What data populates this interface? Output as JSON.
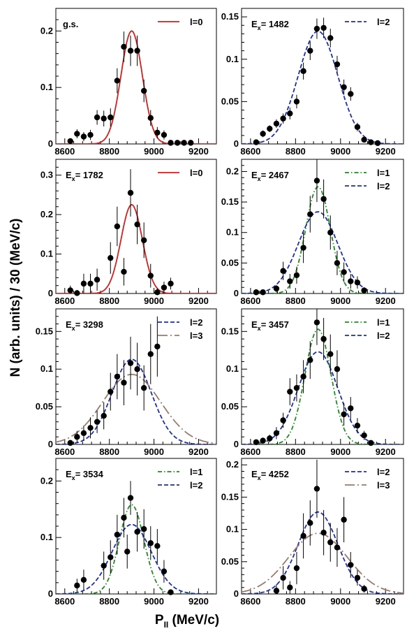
{
  "figure": {
    "ylabel": "N (arb. units) / 30 (MeV/c)",
    "xlabel_main": "P",
    "xlabel_sub": "II",
    "xlabel_unit": " (MeV/c)"
  },
  "colors": {
    "l0": "#d21f1f",
    "l1": "#1f8c1f",
    "l2": "#1f2fa8",
    "l3": "#9a7b6b",
    "points": "#000000"
  },
  "chart_data": [
    {
      "type": "scatter",
      "title": "g.s.",
      "xlim": [
        8560,
        9280
      ],
      "ylim": [
        0,
        0.24
      ],
      "xticks": [
        8600,
        8800,
        9000,
        9200
      ],
      "yticks": [
        0,
        0.1,
        0.2
      ],
      "ytick_labels": [
        "0",
        "0.1",
        "0.2"
      ],
      "points": [
        {
          "x": 8625,
          "y": 0.005,
          "err": 0.004
        },
        {
          "x": 8655,
          "y": 0.018,
          "err": 0.008
        },
        {
          "x": 8685,
          "y": 0.013,
          "err": 0.008
        },
        {
          "x": 8715,
          "y": 0.016,
          "err": 0.009
        },
        {
          "x": 8745,
          "y": 0.047,
          "err": 0.013
        },
        {
          "x": 8775,
          "y": 0.045,
          "err": 0.014
        },
        {
          "x": 8805,
          "y": 0.047,
          "err": 0.016
        },
        {
          "x": 8835,
          "y": 0.112,
          "err": 0.022
        },
        {
          "x": 8865,
          "y": 0.172,
          "err": 0.027
        },
        {
          "x": 8895,
          "y": 0.165,
          "err": 0.027
        },
        {
          "x": 8925,
          "y": 0.165,
          "err": 0.027
        },
        {
          "x": 8955,
          "y": 0.094,
          "err": 0.02
        },
        {
          "x": 8985,
          "y": 0.046,
          "err": 0.014
        },
        {
          "x": 9015,
          "y": 0.02,
          "err": 0.01
        },
        {
          "x": 9045,
          "y": 0.016,
          "err": 0.008
        },
        {
          "x": 9075,
          "y": 0.002,
          "err": 0.003
        },
        {
          "x": 9105,
          "y": 0.002,
          "err": 0.002
        },
        {
          "x": 9135,
          "y": 0.002,
          "err": 0.002
        },
        {
          "x": 9165,
          "y": 0.002,
          "err": 0.002
        }
      ],
      "series": [
        {
          "name": "l=0",
          "style": "solid",
          "color_key": "l0",
          "amp": 0.2,
          "center": 8900,
          "sigma": 48
        }
      ]
    },
    {
      "type": "scatter",
      "title_main": "E",
      "title_sub": "x",
      "title_value": "= 1482",
      "xlim": [
        8560,
        9280
      ],
      "ylim": [
        0,
        0.16
      ],
      "xticks": [
        8600,
        8800,
        9000,
        9200
      ],
      "yticks": [
        0,
        0.05,
        0.1,
        0.15
      ],
      "ytick_labels": [
        "0",
        "0.05",
        "0.1",
        "0.15"
      ],
      "points": [
        {
          "x": 8625,
          "y": 0.002,
          "err": 0.002
        },
        {
          "x": 8655,
          "y": 0.012,
          "err": 0.004
        },
        {
          "x": 8685,
          "y": 0.018,
          "err": 0.004
        },
        {
          "x": 8715,
          "y": 0.024,
          "err": 0.005
        },
        {
          "x": 8745,
          "y": 0.03,
          "err": 0.006
        },
        {
          "x": 8775,
          "y": 0.036,
          "err": 0.007
        },
        {
          "x": 8805,
          "y": 0.05,
          "err": 0.008
        },
        {
          "x": 8835,
          "y": 0.086,
          "err": 0.01
        },
        {
          "x": 8865,
          "y": 0.11,
          "err": 0.011
        },
        {
          "x": 8895,
          "y": 0.136,
          "err": 0.012
        },
        {
          "x": 8925,
          "y": 0.137,
          "err": 0.012
        },
        {
          "x": 8955,
          "y": 0.125,
          "err": 0.011
        },
        {
          "x": 8985,
          "y": 0.094,
          "err": 0.01
        },
        {
          "x": 9015,
          "y": 0.067,
          "err": 0.009
        },
        {
          "x": 9045,
          "y": 0.059,
          "err": 0.008
        },
        {
          "x": 9075,
          "y": 0.02,
          "err": 0.005
        },
        {
          "x": 9105,
          "y": 0.005,
          "err": 0.003
        },
        {
          "x": 9135,
          "y": 0.002,
          "err": 0.002
        },
        {
          "x": 9165,
          "y": 0.001,
          "err": 0.001
        }
      ],
      "series": [
        {
          "name": "l=2",
          "style": "dash",
          "color_key": "l2",
          "amp": 0.133,
          "center": 8900,
          "sigma": 88
        }
      ]
    },
    {
      "type": "scatter",
      "title_main": "E",
      "title_sub": "x",
      "title_value": "= 1782",
      "xlim": [
        8560,
        9280
      ],
      "ylim": [
        0,
        0.34
      ],
      "xticks": [
        8600,
        8800,
        9000,
        9200
      ],
      "yticks": [
        0,
        0.1,
        0.2,
        0.3
      ],
      "ytick_labels": [
        "0",
        "0.1",
        "0.2",
        "0.3"
      ],
      "points": [
        {
          "x": 8625,
          "y": 0.008,
          "err": 0.012
        },
        {
          "x": 8655,
          "y": 0.001,
          "err": 0.008
        },
        {
          "x": 8685,
          "y": 0.025,
          "err": 0.025
        },
        {
          "x": 8715,
          "y": 0.025,
          "err": 0.025
        },
        {
          "x": 8745,
          "y": 0.035,
          "err": 0.028
        },
        {
          "x": 8805,
          "y": 0.09,
          "err": 0.04
        },
        {
          "x": 8835,
          "y": 0.17,
          "err": 0.05
        },
        {
          "x": 8865,
          "y": 0.055,
          "err": 0.035
        },
        {
          "x": 8895,
          "y": 0.255,
          "err": 0.06
        },
        {
          "x": 8925,
          "y": 0.175,
          "err": 0.05
        },
        {
          "x": 8955,
          "y": 0.135,
          "err": 0.045
        },
        {
          "x": 8985,
          "y": 0.045,
          "err": 0.03
        },
        {
          "x": 9015,
          "y": 0.003,
          "err": 0.01
        },
        {
          "x": 9045,
          "y": 0.015,
          "err": 0.015
        },
        {
          "x": 9075,
          "y": 0.025,
          "err": 0.015
        }
      ],
      "series": [
        {
          "name": "l=0",
          "style": "solid",
          "color_key": "l0",
          "amp": 0.225,
          "center": 8900,
          "sigma": 48
        }
      ]
    },
    {
      "type": "scatter",
      "title_main": "E",
      "title_sub": "x",
      "title_value": "= 2467",
      "xlim": [
        8560,
        9280
      ],
      "ylim": [
        0,
        0.22
      ],
      "xticks": [
        8600,
        8800,
        9000,
        9200
      ],
      "yticks": [
        0,
        0.05,
        0.1,
        0.15,
        0.2
      ],
      "ytick_labels": [
        "0",
        "0.05",
        "0.1",
        "0.15",
        "0.2"
      ],
      "points": [
        {
          "x": 8625,
          "y": 0.002,
          "err": 0.002
        },
        {
          "x": 8655,
          "y": 0.002,
          "err": 0.003
        },
        {
          "x": 8715,
          "y": 0.008,
          "err": 0.006
        },
        {
          "x": 8745,
          "y": 0.037,
          "err": 0.015
        },
        {
          "x": 8775,
          "y": 0.02,
          "err": 0.012
        },
        {
          "x": 8805,
          "y": 0.03,
          "err": 0.014
        },
        {
          "x": 8835,
          "y": 0.075,
          "err": 0.025
        },
        {
          "x": 8865,
          "y": 0.13,
          "err": 0.03
        },
        {
          "x": 8895,
          "y": 0.185,
          "err": 0.035
        },
        {
          "x": 8925,
          "y": 0.155,
          "err": 0.032
        },
        {
          "x": 8955,
          "y": 0.1,
          "err": 0.028
        },
        {
          "x": 8985,
          "y": 0.05,
          "err": 0.02
        },
        {
          "x": 9015,
          "y": 0.035,
          "err": 0.016
        },
        {
          "x": 9045,
          "y": 0.02,
          "err": 0.012
        },
        {
          "x": 9075,
          "y": 0.018,
          "err": 0.01
        },
        {
          "x": 9105,
          "y": 0.005,
          "err": 0.005
        }
      ],
      "series": [
        {
          "name": "l=1",
          "style": "dashdot",
          "color_key": "l1",
          "amp": 0.175,
          "center": 8900,
          "sigma": 55
        },
        {
          "name": "l=2",
          "style": "dash",
          "color_key": "l2",
          "amp": 0.134,
          "center": 8900,
          "sigma": 88
        }
      ]
    },
    {
      "type": "scatter",
      "title_main": "E",
      "title_sub": "x",
      "title_value": "= 3298",
      "xlim": [
        8560,
        9280
      ],
      "ylim": [
        0,
        0.18
      ],
      "xticks": [
        8600,
        8800,
        9000,
        9200
      ],
      "yticks": [
        0,
        0.05,
        0.1,
        0.15
      ],
      "ytick_labels": [
        "0",
        "0.05",
        "0.1",
        "0.15"
      ],
      "points": [
        {
          "x": 8625,
          "y": 0.002,
          "err": 0.003
        },
        {
          "x": 8655,
          "y": 0.01,
          "err": 0.008
        },
        {
          "x": 8685,
          "y": 0.015,
          "err": 0.01
        },
        {
          "x": 8715,
          "y": 0.022,
          "err": 0.014
        },
        {
          "x": 8745,
          "y": 0.03,
          "err": 0.015
        },
        {
          "x": 8775,
          "y": 0.038,
          "err": 0.018
        },
        {
          "x": 8805,
          "y": 0.07,
          "err": 0.025
        },
        {
          "x": 8835,
          "y": 0.09,
          "err": 0.03
        },
        {
          "x": 8865,
          "y": 0.082,
          "err": 0.03
        },
        {
          "x": 8895,
          "y": 0.108,
          "err": 0.035
        },
        {
          "x": 8925,
          "y": 0.1,
          "err": 0.035
        },
        {
          "x": 8955,
          "y": 0.075,
          "err": 0.03
        },
        {
          "x": 8985,
          "y": 0.12,
          "err": 0.04
        },
        {
          "x": 9015,
          "y": 0.13,
          "err": 0.04
        }
      ],
      "series": [
        {
          "name": "l=2",
          "style": "dash",
          "color_key": "l2",
          "amp": 0.113,
          "center": 8900,
          "sigma": 88
        },
        {
          "name": "l=3",
          "style": "longdash",
          "color_key": "l3",
          "amp": 0.093,
          "center": 8900,
          "sigma": 130
        }
      ]
    },
    {
      "type": "scatter",
      "title_main": "E",
      "title_sub": "x",
      "title_value": "= 3457",
      "xlim": [
        8560,
        9280
      ],
      "ylim": [
        0,
        0.18
      ],
      "xticks": [
        8600,
        8800,
        9000,
        9200
      ],
      "yticks": [
        0,
        0.05,
        0.1,
        0.15
      ],
      "ytick_labels": [
        "0",
        "0.05",
        "0.1",
        "0.15"
      ],
      "points": [
        {
          "x": 8625,
          "y": 0.003,
          "err": 0.003
        },
        {
          "x": 8655,
          "y": 0.005,
          "err": 0.004
        },
        {
          "x": 8685,
          "y": 0.008,
          "err": 0.005
        },
        {
          "x": 8715,
          "y": 0.015,
          "err": 0.008
        },
        {
          "x": 8745,
          "y": 0.032,
          "err": 0.01
        },
        {
          "x": 8775,
          "y": 0.07,
          "err": 0.018
        },
        {
          "x": 8805,
          "y": 0.075,
          "err": 0.018
        },
        {
          "x": 8835,
          "y": 0.09,
          "err": 0.022
        },
        {
          "x": 8865,
          "y": 0.112,
          "err": 0.025
        },
        {
          "x": 8895,
          "y": 0.162,
          "err": 0.03
        },
        {
          "x": 8925,
          "y": 0.14,
          "err": 0.028
        },
        {
          "x": 8955,
          "y": 0.12,
          "err": 0.026
        },
        {
          "x": 8985,
          "y": 0.1,
          "err": 0.025
        },
        {
          "x": 9015,
          "y": 0.04,
          "err": 0.015
        },
        {
          "x": 9045,
          "y": 0.048,
          "err": 0.015
        },
        {
          "x": 9075,
          "y": 0.025,
          "err": 0.01
        },
        {
          "x": 9105,
          "y": 0.012,
          "err": 0.006
        },
        {
          "x": 9135,
          "y": 0.002,
          "err": 0.003
        }
      ],
      "series": [
        {
          "name": "l=1",
          "style": "dashdot",
          "color_key": "l1",
          "amp": 0.153,
          "center": 8900,
          "sigma": 58
        },
        {
          "name": "l=2",
          "style": "dash",
          "color_key": "l2",
          "amp": 0.123,
          "center": 8900,
          "sigma": 88
        }
      ]
    },
    {
      "type": "scatter",
      "title_main": "E",
      "title_sub": "x",
      "title_value": "= 3534",
      "xlim": [
        8560,
        9280
      ],
      "ylim": [
        0,
        0.24
      ],
      "xticks": [
        8600,
        8800,
        9000,
        9200
      ],
      "yticks": [
        0,
        0.1,
        0.2
      ],
      "ytick_labels": [
        "0",
        "0.1",
        "0.2"
      ],
      "points": [
        {
          "x": 8655,
          "y": 0.015,
          "err": 0.012
        },
        {
          "x": 8685,
          "y": 0.025,
          "err": 0.018
        },
        {
          "x": 8775,
          "y": 0.05,
          "err": 0.025
        },
        {
          "x": 8805,
          "y": 0.065,
          "err": 0.03
        },
        {
          "x": 8835,
          "y": 0.105,
          "err": 0.035
        },
        {
          "x": 8865,
          "y": 0.135,
          "err": 0.035
        },
        {
          "x": 8880,
          "y": 0.075,
          "err": 0.03
        },
        {
          "x": 8895,
          "y": 0.17,
          "err": 0.03
        },
        {
          "x": 8925,
          "y": 0.11,
          "err": 0.035
        },
        {
          "x": 8955,
          "y": 0.115,
          "err": 0.035
        },
        {
          "x": 8985,
          "y": 0.09,
          "err": 0.03
        },
        {
          "x": 9015,
          "y": 0.085,
          "err": 0.03
        },
        {
          "x": 9045,
          "y": 0.04,
          "err": 0.02
        },
        {
          "x": 9075,
          "y": 0.003,
          "err": 0.005
        }
      ],
      "series": [
        {
          "name": "l=1",
          "style": "dashdot",
          "color_key": "l1",
          "amp": 0.158,
          "center": 8900,
          "sigma": 55
        },
        {
          "name": "l=2",
          "style": "dash",
          "color_key": "l2",
          "amp": 0.123,
          "center": 8900,
          "sigma": 88
        }
      ]
    },
    {
      "type": "scatter",
      "title_main": "E",
      "title_sub": "x",
      "title_value": "= 4252",
      "xlim": [
        8560,
        9280
      ],
      "ylim": [
        0,
        0.21
      ],
      "xticks": [
        8600,
        8800,
        9000,
        9200
      ],
      "yticks": [
        0,
        0.05,
        0.1,
        0.15,
        0.2
      ],
      "ytick_labels": [
        "0",
        "0.05",
        "0.1",
        "0.15",
        "0.2"
      ],
      "points": [
        {
          "x": 8715,
          "y": 0.005,
          "err": 0.01
        },
        {
          "x": 8745,
          "y": 0.025,
          "err": 0.018
        },
        {
          "x": 8775,
          "y": 0.01,
          "err": 0.01
        },
        {
          "x": 8805,
          "y": 0.04,
          "err": 0.025
        },
        {
          "x": 8835,
          "y": 0.09,
          "err": 0.035
        },
        {
          "x": 8865,
          "y": 0.11,
          "err": 0.035
        },
        {
          "x": 8895,
          "y": 0.163,
          "err": 0.045
        },
        {
          "x": 8925,
          "y": 0.095,
          "err": 0.035
        },
        {
          "x": 8955,
          "y": 0.08,
          "err": 0.03
        },
        {
          "x": 8985,
          "y": 0.072,
          "err": 0.03
        },
        {
          "x": 9015,
          "y": 0.115,
          "err": 0.035
        },
        {
          "x": 9045,
          "y": 0.045,
          "err": 0.02
        },
        {
          "x": 9075,
          "y": 0.025,
          "err": 0.012
        },
        {
          "x": 9105,
          "y": 0.008,
          "err": 0.006
        }
      ],
      "series": [
        {
          "name": "l=2",
          "style": "dash",
          "color_key": "l2",
          "amp": 0.127,
          "center": 8900,
          "sigma": 88
        },
        {
          "name": "l=3",
          "style": "longdash",
          "color_key": "l3",
          "amp": 0.094,
          "center": 8900,
          "sigma": 130
        }
      ]
    }
  ]
}
